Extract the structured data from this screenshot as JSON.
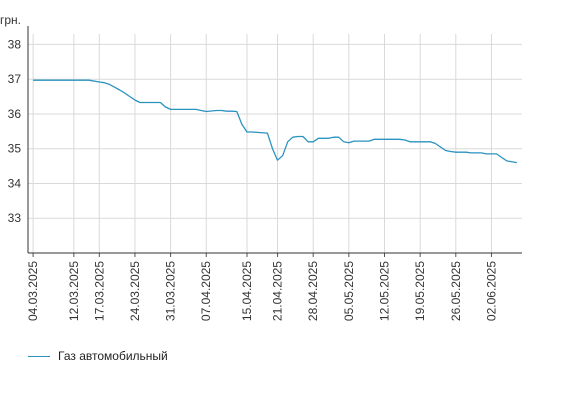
{
  "chart_data": {
    "type": "line",
    "ylabel": "грн.",
    "ylim": [
      32,
      38.3
    ],
    "yticks": [
      "33",
      "34",
      "35",
      "36",
      "37",
      "38"
    ],
    "xlim": [
      "2025-03-03",
      "2025-06-08"
    ],
    "xticks": [
      "04.03.2025",
      "12.03.2025",
      "17.03.2025",
      "24.03.2025",
      "31.03.2025",
      "07.04.2025",
      "15.04.2025",
      "21.04.2025",
      "28.04.2025",
      "05.05.2025",
      "12.05.2025",
      "19.05.2025",
      "26.05.2025",
      "02.06.2025"
    ],
    "grid": true,
    "legend_position": "bottom-left",
    "series": [
      {
        "name": "Газ автомобильный",
        "color": "#2a93bf",
        "x": [
          "2025-03-04",
          "2025-03-10",
          "2025-03-15",
          "2025-03-17",
          "2025-03-18",
          "2025-03-19",
          "2025-03-20",
          "2025-03-21",
          "2025-03-22",
          "2025-03-23",
          "2025-03-24",
          "2025-03-25",
          "2025-03-29",
          "2025-03-30",
          "2025-03-31",
          "2025-04-04",
          "2025-04-05",
          "2025-04-06",
          "2025-04-07",
          "2025-04-09",
          "2025-04-10",
          "2025-04-11",
          "2025-04-12",
          "2025-04-13",
          "2025-04-14",
          "2025-04-15",
          "2025-04-16",
          "2025-04-19",
          "2025-04-20",
          "2025-04-21",
          "2025-04-22",
          "2025-04-23",
          "2025-04-24",
          "2025-04-25",
          "2025-04-26",
          "2025-04-27",
          "2025-04-28",
          "2025-04-29",
          "2025-05-01",
          "2025-05-02",
          "2025-05-03",
          "2025-05-04",
          "2025-05-05",
          "2025-05-06",
          "2025-05-08",
          "2025-05-09",
          "2025-05-10",
          "2025-05-12",
          "2025-05-15",
          "2025-05-16",
          "2025-05-17",
          "2025-05-18",
          "2025-05-19",
          "2025-05-20",
          "2025-05-21",
          "2025-05-22",
          "2025-05-23",
          "2025-05-24",
          "2025-05-25",
          "2025-05-26",
          "2025-05-27",
          "2025-05-28",
          "2025-05-29",
          "2025-05-30",
          "2025-05-31",
          "2025-06-01",
          "2025-06-02",
          "2025-06-03",
          "2025-06-04",
          "2025-06-05",
          "2025-06-07"
        ],
        "values": [
          36.97,
          36.97,
          36.97,
          36.92,
          36.9,
          36.85,
          36.77,
          36.69,
          36.6,
          36.5,
          36.4,
          36.33,
          36.33,
          36.2,
          36.13,
          36.13,
          36.13,
          36.1,
          36.07,
          36.1,
          36.1,
          36.08,
          36.08,
          36.07,
          35.7,
          35.48,
          35.48,
          35.45,
          35.0,
          34.67,
          34.8,
          35.2,
          35.33,
          35.35,
          35.35,
          35.2,
          35.2,
          35.3,
          35.3,
          35.33,
          35.33,
          35.2,
          35.17,
          35.22,
          35.22,
          35.22,
          35.27,
          35.27,
          35.27,
          35.25,
          35.2,
          35.2,
          35.2,
          35.2,
          35.2,
          35.15,
          35.05,
          34.95,
          34.92,
          34.9,
          34.9,
          34.9,
          34.88,
          34.88,
          34.88,
          34.85,
          34.85,
          34.85,
          34.75,
          34.65,
          34.6
        ]
      }
    ]
  }
}
